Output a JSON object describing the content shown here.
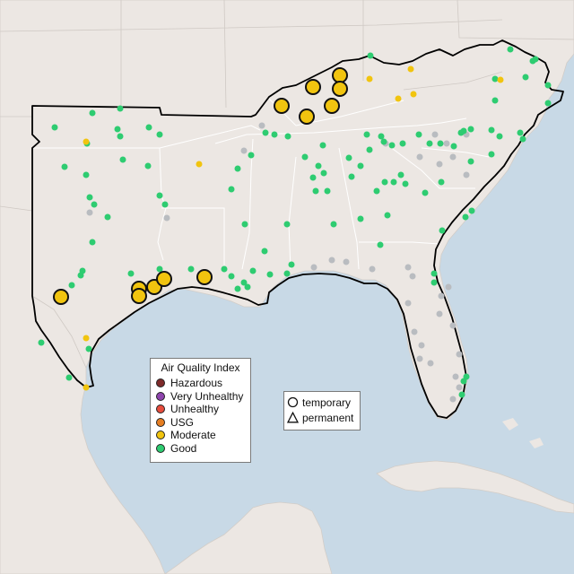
{
  "legend": {
    "title": "Air Quality Index",
    "categories": [
      {
        "label": "Hazardous",
        "color": "#7e2a2a"
      },
      {
        "label": "Very Unhealthy",
        "color": "#8e44ad"
      },
      {
        "label": "Unhealthy",
        "color": "#e74c3c"
      },
      {
        "label": "USG",
        "color": "#e67e22"
      },
      {
        "label": "Moderate",
        "color": "#f1c40f"
      },
      {
        "label": "Good",
        "color": "#2ecc71"
      }
    ]
  },
  "site_legend": {
    "temporary": "temporary",
    "permanent": "permanent"
  },
  "colors": {
    "ocean": "#c8d9e6",
    "land": "#ece7e3",
    "outline": "#000000",
    "inactive": "#b9bcc0"
  }
}
